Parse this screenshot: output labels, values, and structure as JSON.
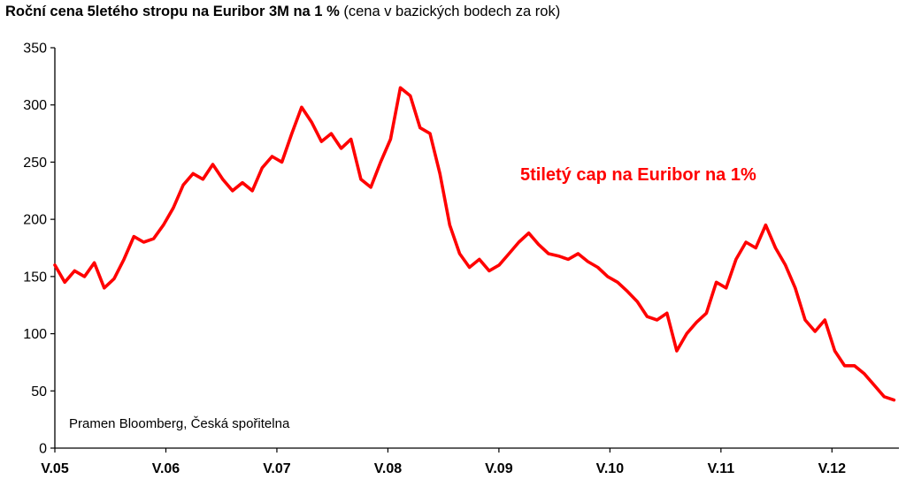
{
  "chart_data": {
    "type": "line",
    "title": "Roční cena 5letého stropu na Euribor 3M na 1 %",
    "subtitle": "(cena v bazických bodech za rok)",
    "xlabel": "",
    "ylabel": "",
    "ylim": [
      0,
      350
    ],
    "yticks": [
      0,
      50,
      100,
      150,
      200,
      250,
      300,
      350
    ],
    "x_ticks": [
      "V.05",
      "V.06",
      "V.07",
      "V.08",
      "V.09",
      "V.10",
      "V.11",
      "V.12"
    ],
    "xlim": [
      0,
      85.5
    ],
    "grid": false,
    "annotation": "Pramen Bloomberg, Česká spořitelna",
    "series": [
      {
        "name": "5tiletý cap na Euribor na 1%",
        "color": "#ff0000",
        "x": [
          0,
          1,
          2,
          3,
          4,
          5,
          6,
          7,
          8,
          9,
          10,
          11,
          12,
          13,
          14,
          15,
          16,
          17,
          18,
          19,
          20,
          21,
          22,
          23,
          24,
          25,
          26,
          27,
          28,
          29,
          30,
          31,
          32,
          33,
          34,
          35,
          36,
          37,
          38,
          39,
          40,
          41,
          42,
          43,
          44,
          45,
          46,
          47,
          48,
          49,
          50,
          51,
          52,
          53,
          54,
          55,
          56,
          57,
          58,
          59,
          60,
          61,
          62,
          63,
          64,
          65,
          66,
          67,
          68,
          69,
          70,
          71,
          72,
          73,
          74,
          75,
          76,
          77,
          78,
          79,
          80,
          81,
          82,
          83,
          84,
          85
        ],
        "values": [
          160,
          145,
          155,
          150,
          162,
          140,
          148,
          165,
          185,
          180,
          183,
          195,
          210,
          230,
          240,
          235,
          248,
          235,
          225,
          232,
          225,
          245,
          255,
          250,
          275,
          298,
          285,
          268,
          275,
          262,
          270,
          235,
          228,
          250,
          270,
          315,
          308,
          280,
          275,
          240,
          195,
          170,
          158,
          165,
          155,
          160,
          170,
          180,
          188,
          178,
          170,
          168,
          165,
          170,
          163,
          158,
          150,
          145,
          137,
          128,
          115,
          112,
          118,
          85,
          100,
          110,
          118,
          145,
          140,
          165,
          180,
          175,
          195,
          175,
          160,
          140,
          112,
          102,
          112,
          85,
          72,
          72,
          65,
          55,
          45,
          42
        ]
      }
    ]
  }
}
